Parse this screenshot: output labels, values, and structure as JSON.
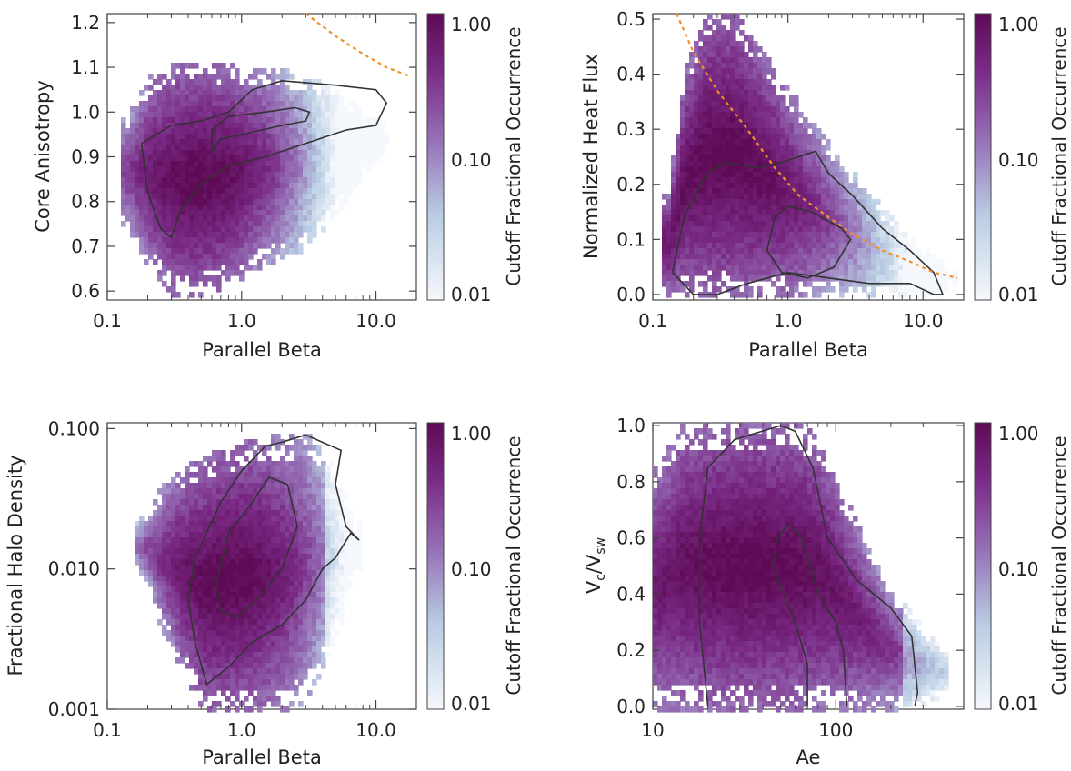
{
  "colorbar": {
    "label": "Cutoff Fractional Occurrence",
    "ticks": [
      "1.00",
      "0.10",
      "0.01"
    ],
    "colors": [
      "#f5f8fc",
      "#b8cce3",
      "#9773b8",
      "#7a2b86",
      "#5e0a55"
    ]
  },
  "contour_color": "#333333",
  "threshold_color": "#f0902a",
  "chart_data": [
    {
      "type": "heatmap",
      "title": "",
      "xlabel": "Parallel Beta",
      "ylabel": "Core Anisotropy",
      "xscale": "log",
      "xlim": [
        0.1,
        20
      ],
      "yscale": "linear",
      "ylim": [
        0.58,
        1.22
      ],
      "xticks": [
        "0.1",
        "1.0",
        "10.0"
      ],
      "yticks": [
        "0.6",
        "0.7",
        "0.8",
        "0.9",
        "1.0",
        "1.1",
        "1.2"
      ],
      "ytick_values": [
        0.6,
        0.7,
        0.8,
        0.9,
        1.0,
        1.1,
        1.2
      ],
      "xtick_values": [
        0.1,
        1.0,
        10.0
      ],
      "distribution": {
        "x": [
          0.14,
          0.2,
          0.3,
          0.5,
          0.8,
          1.2,
          2.0,
          3.0,
          5.0,
          8.0,
          12.0
        ],
        "y_low": [
          0.75,
          0.66,
          0.6,
          0.6,
          0.62,
          0.65,
          0.68,
          0.7,
          0.78,
          0.86,
          0.93
        ],
        "y_high": [
          0.98,
          1.07,
          1.1,
          1.1,
          1.1,
          1.09,
          1.09,
          1.08,
          1.04,
          1.0,
          0.96
        ],
        "peak_x": 0.5,
        "peak_y": 0.87,
        "spread_x": 0.9
      },
      "contour_outer": [
        [
          0.18,
          0.93
        ],
        [
          0.2,
          0.82
        ],
        [
          0.25,
          0.74
        ],
        [
          0.3,
          0.72
        ],
        [
          0.35,
          0.78
        ],
        [
          0.5,
          0.84
        ],
        [
          0.8,
          0.88
        ],
        [
          1.5,
          0.9
        ],
        [
          3.0,
          0.93
        ],
        [
          6.0,
          0.96
        ],
        [
          10.0,
          0.97
        ],
        [
          12.0,
          1.02
        ],
        [
          10.0,
          1.05
        ],
        [
          5.0,
          1.06
        ],
        [
          2.0,
          1.07
        ],
        [
          1.2,
          1.05
        ],
        [
          0.8,
          1.0
        ],
        [
          0.5,
          0.98
        ],
        [
          0.3,
          0.97
        ],
        [
          0.18,
          0.93
        ]
      ],
      "contour_inner": [
        [
          0.6,
          0.91
        ],
        [
          0.7,
          0.94
        ],
        [
          1.0,
          0.95
        ],
        [
          2.0,
          0.97
        ],
        [
          3.0,
          0.98
        ],
        [
          3.2,
          1.0
        ],
        [
          2.5,
          1.01
        ],
        [
          1.5,
          1.0
        ],
        [
          0.8,
          0.99
        ],
        [
          0.6,
          0.96
        ],
        [
          0.6,
          0.91
        ]
      ],
      "threshold_line": {
        "x": [
          3.0,
          5.0,
          8.0,
          12.0,
          18.0
        ],
        "y": [
          1.22,
          1.17,
          1.13,
          1.1,
          1.08
        ]
      }
    },
    {
      "type": "heatmap",
      "title": "",
      "xlabel": "Parallel Beta",
      "ylabel": "Normalized Heat Flux",
      "xscale": "log",
      "xlim": [
        0.1,
        20
      ],
      "yscale": "linear",
      "ylim": [
        -0.01,
        0.51
      ],
      "xticks": [
        "0.1",
        "1.0",
        "10.0"
      ],
      "yticks": [
        "0.0",
        "0.1",
        "0.2",
        "0.3",
        "0.4",
        "0.5"
      ],
      "ytick_values": [
        0.0,
        0.1,
        0.2,
        0.3,
        0.4,
        0.5
      ],
      "xtick_values": [
        0.1,
        1.0,
        10.0
      ],
      "distribution": {
        "x": [
          0.13,
          0.17,
          0.25,
          0.4,
          0.6,
          0.9,
          1.4,
          2.0,
          3.0,
          5.0,
          8.0,
          13.0,
          16.0
        ],
        "y_low": [
          0.0,
          0.0,
          0.0,
          0.0,
          0.0,
          0.0,
          0.0,
          0.0,
          0.0,
          0.0,
          0.0,
          0.0,
          0.02
        ],
        "y_high": [
          0.18,
          0.4,
          0.51,
          0.51,
          0.45,
          0.38,
          0.32,
          0.27,
          0.22,
          0.15,
          0.1,
          0.06,
          0.04
        ],
        "peak_x": 0.35,
        "peak_y": 0.12,
        "spread_x": 1.2
      },
      "contour_outer": [
        [
          0.14,
          0.04
        ],
        [
          0.17,
          0.14
        ],
        [
          0.25,
          0.22
        ],
        [
          0.35,
          0.24
        ],
        [
          0.6,
          0.23
        ],
        [
          0.9,
          0.24
        ],
        [
          1.6,
          0.26
        ],
        [
          2.0,
          0.22
        ],
        [
          3.0,
          0.18
        ],
        [
          5.0,
          0.12
        ],
        [
          8.0,
          0.08
        ],
        [
          12.0,
          0.04
        ],
        [
          14.0,
          0.0
        ],
        [
          12.0,
          0.0
        ],
        [
          8.0,
          0.02
        ],
        [
          4.0,
          0.02
        ],
        [
          2.0,
          0.03
        ],
        [
          1.0,
          0.04
        ],
        [
          0.5,
          0.02
        ],
        [
          0.3,
          0.0
        ],
        [
          0.2,
          0.0
        ],
        [
          0.14,
          0.04
        ]
      ],
      "contour_inner": [
        [
          0.7,
          0.08
        ],
        [
          0.8,
          0.14
        ],
        [
          1.0,
          0.16
        ],
        [
          1.5,
          0.15
        ],
        [
          2.5,
          0.12
        ],
        [
          2.9,
          0.1
        ],
        [
          2.2,
          0.05
        ],
        [
          1.4,
          0.03
        ],
        [
          0.9,
          0.04
        ],
        [
          0.7,
          0.08
        ]
      ],
      "threshold_line": {
        "x": [
          0.15,
          0.2,
          0.3,
          0.5,
          0.8,
          1.2,
          2.0,
          3.0,
          5.0,
          8.0,
          12.0,
          18.0
        ],
        "y": [
          0.51,
          0.44,
          0.37,
          0.3,
          0.23,
          0.18,
          0.14,
          0.11,
          0.08,
          0.06,
          0.04,
          0.03
        ]
      }
    },
    {
      "type": "heatmap",
      "title": "",
      "xlabel": "Parallel Beta",
      "ylabel": "Fractional Halo Density",
      "xscale": "log",
      "xlim": [
        0.1,
        20
      ],
      "yscale": "log",
      "ylim": [
        0.001,
        0.11
      ],
      "xticks": [
        "0.1",
        "1.0",
        "10.0"
      ],
      "yticks": [
        "0.001",
        "0.010",
        "0.100"
      ],
      "ytick_values": [
        0.001,
        0.01,
        0.1
      ],
      "xtick_values": [
        0.1,
        1.0,
        10.0
      ],
      "distribution": {
        "x": [
          0.17,
          0.25,
          0.35,
          0.5,
          0.8,
          1.2,
          2.0,
          3.0,
          4.0,
          5.5,
          7.0
        ],
        "y_low": [
          0.01,
          0.004,
          0.002,
          0.001,
          0.001,
          0.001,
          0.001,
          0.0012,
          0.002,
          0.004,
          0.01
        ],
        "y_high": [
          0.02,
          0.035,
          0.05,
          0.06,
          0.07,
          0.08,
          0.085,
          0.09,
          0.07,
          0.04,
          0.02
        ],
        "peak_x": 0.8,
        "peak_y": 0.008,
        "spread_x": 0.9
      },
      "contour_outer": [
        [
          0.4,
          0.006
        ],
        [
          0.45,
          0.003
        ],
        [
          0.55,
          0.0015
        ],
        [
          0.8,
          0.002
        ],
        [
          1.2,
          0.003
        ],
        [
          2.0,
          0.004
        ],
        [
          3.0,
          0.006
        ],
        [
          4.0,
          0.01
        ],
        [
          5.0,
          0.012
        ],
        [
          6.5,
          0.018
        ],
        [
          7.5,
          0.016
        ],
        [
          6.0,
          0.02
        ],
        [
          5.0,
          0.04
        ],
        [
          5.5,
          0.07
        ],
        [
          3.0,
          0.09
        ],
        [
          2.0,
          0.08
        ],
        [
          1.5,
          0.075
        ],
        [
          1.0,
          0.05
        ],
        [
          0.7,
          0.03
        ],
        [
          0.45,
          0.012
        ],
        [
          0.4,
          0.006
        ]
      ],
      "contour_inner": [
        [
          0.65,
          0.008
        ],
        [
          0.7,
          0.005
        ],
        [
          0.9,
          0.0045
        ],
        [
          1.3,
          0.006
        ],
        [
          2.0,
          0.01
        ],
        [
          2.6,
          0.02
        ],
        [
          2.2,
          0.04
        ],
        [
          1.6,
          0.045
        ],
        [
          1.2,
          0.03
        ],
        [
          0.8,
          0.018
        ],
        [
          0.65,
          0.008
        ]
      ],
      "threshold_line": null
    },
    {
      "type": "heatmap",
      "title": "",
      "xlabel": "Ae",
      "ylabel": "V_c/V_sw",
      "xscale": "log",
      "xlim": [
        10,
        500
      ],
      "yscale": "linear",
      "ylim": [
        -0.01,
        1.01
      ],
      "xticks": [
        "10",
        "100"
      ],
      "yticks": [
        "0.0",
        "0.2",
        "0.4",
        "0.6",
        "0.8",
        "1.0"
      ],
      "ytick_values": [
        0.0,
        0.2,
        0.4,
        0.6,
        0.8,
        1.0
      ],
      "xtick_values": [
        10,
        100
      ],
      "distribution": {
        "x": [
          11,
          14,
          20,
          30,
          45,
          60,
          80,
          110,
          150,
          200,
          280,
          380
        ],
        "y_low": [
          0.0,
          0.0,
          0.0,
          0.0,
          0.0,
          0.0,
          0.0,
          0.0,
          0.0,
          0.0,
          0.0,
          0.05
        ],
        "y_high": [
          0.85,
          1.0,
          1.0,
          1.0,
          1.0,
          1.0,
          0.95,
          0.75,
          0.55,
          0.4,
          0.3,
          0.2
        ],
        "peak_x": 35,
        "peak_y": 0.45,
        "spread_x": 1.3
      },
      "contour_outer": [
        [
          20,
          0.0
        ],
        [
          18,
          0.3
        ],
        [
          18,
          0.6
        ],
        [
          20,
          0.85
        ],
        [
          28,
          0.95
        ],
        [
          50,
          1.0
        ],
        [
          60,
          0.98
        ],
        [
          75,
          0.85
        ],
        [
          90,
          0.6
        ],
        [
          130,
          0.45
        ],
        [
          200,
          0.35
        ],
        [
          260,
          0.25
        ],
        [
          280,
          0.05
        ],
        [
          270,
          0.0
        ]
      ],
      "contour_inner": [
        [
          70,
          0.0
        ],
        [
          70,
          0.15
        ],
        [
          60,
          0.3
        ],
        [
          45,
          0.5
        ],
        [
          48,
          0.6
        ],
        [
          55,
          0.65
        ],
        [
          65,
          0.6
        ],
        [
          80,
          0.4
        ],
        [
          100,
          0.3
        ],
        [
          110,
          0.2
        ],
        [
          115,
          0.0
        ]
      ],
      "threshold_line": null
    }
  ]
}
